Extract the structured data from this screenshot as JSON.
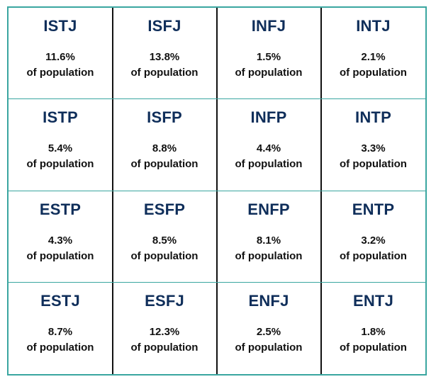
{
  "chart_data": {
    "type": "table",
    "columns": 4,
    "rows": 4,
    "population_label": "of population",
    "cells": [
      {
        "type": "ISTJ",
        "percent": "11.6%",
        "value": 11.6
      },
      {
        "type": "ISFJ",
        "percent": "13.8%",
        "value": 13.8
      },
      {
        "type": "INFJ",
        "percent": "1.5%",
        "value": 1.5
      },
      {
        "type": "INTJ",
        "percent": "2.1%",
        "value": 2.1
      },
      {
        "type": "ISTP",
        "percent": "5.4%",
        "value": 5.4
      },
      {
        "type": "ISFP",
        "percent": "8.8%",
        "value": 8.8
      },
      {
        "type": "INFP",
        "percent": "4.4%",
        "value": 4.4
      },
      {
        "type": "INTP",
        "percent": "3.3%",
        "value": 3.3
      },
      {
        "type": "ESTP",
        "percent": "4.3%",
        "value": 4.3
      },
      {
        "type": "ESFP",
        "percent": "8.5%",
        "value": 8.5
      },
      {
        "type": "ENFP",
        "percent": "8.1%",
        "value": 8.1
      },
      {
        "type": "ENTP",
        "percent": "3.2%",
        "value": 3.2
      },
      {
        "type": "ESTJ",
        "percent": "8.7%",
        "value": 8.7
      },
      {
        "type": "ESFJ",
        "percent": "12.3%",
        "value": 12.3
      },
      {
        "type": "ENFJ",
        "percent": "2.5%",
        "value": 2.5
      },
      {
        "type": "ENTJ",
        "percent": "1.8%",
        "value": 1.8
      }
    ]
  },
  "colors": {
    "border": "#3aa6a0",
    "separator": "#111111",
    "type_text": "#0f2e5a",
    "body_text": "#111111",
    "background": "#ffffff"
  }
}
